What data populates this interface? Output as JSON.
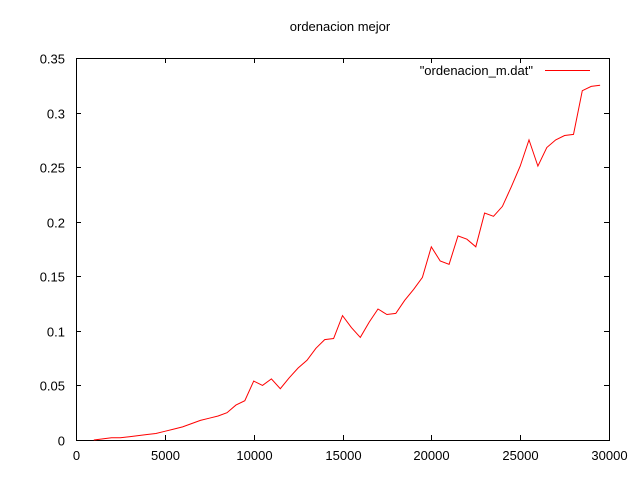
{
  "chart_data": {
    "type": "line",
    "title": "ordenacion mejor",
    "xlabel": "",
    "ylabel": "",
    "xlim": [
      0,
      30000
    ],
    "ylim": [
      0,
      0.35
    ],
    "x_ticks": [
      0,
      5000,
      10000,
      15000,
      20000,
      25000,
      30000
    ],
    "x_tick_labels": [
      "0",
      "5000",
      "10000",
      "15000",
      "20000",
      "25000",
      "30000"
    ],
    "y_ticks": [
      0,
      0.05,
      0.1,
      0.15,
      0.2,
      0.25,
      0.3,
      0.35
    ],
    "y_tick_labels": [
      "0",
      "0.05",
      "0.1",
      "0.15",
      "0.2",
      "0.25",
      "0.3",
      "0.35"
    ],
    "grid": false,
    "legend_position": "top-right",
    "series": [
      {
        "name": "\"ordenacion_m.dat\"",
        "color": "#ff0000",
        "x": [
          1000,
          1500,
          2000,
          2500,
          3000,
          3500,
          4000,
          4500,
          5000,
          5500,
          6000,
          6500,
          7000,
          7500,
          8000,
          8500,
          9000,
          9500,
          10000,
          10500,
          11000,
          11500,
          12000,
          12500,
          13000,
          13500,
          14000,
          14500,
          15000,
          15500,
          16000,
          16500,
          17000,
          17500,
          18000,
          18500,
          19000,
          19500,
          20000,
          20500,
          21000,
          21500,
          22000,
          22500,
          23000,
          23500,
          24000,
          24500,
          25000,
          25500,
          26000,
          26500,
          27000,
          27500,
          28000,
          28500,
          29000,
          29500
        ],
        "y": [
          0.0,
          0.001,
          0.002,
          0.002,
          0.003,
          0.004,
          0.005,
          0.006,
          0.008,
          0.01,
          0.012,
          0.015,
          0.018,
          0.02,
          0.022,
          0.025,
          0.032,
          0.036,
          0.054,
          0.05,
          0.056,
          0.047,
          0.057,
          0.066,
          0.073,
          0.084,
          0.092,
          0.093,
          0.114,
          0.103,
          0.094,
          0.108,
          0.12,
          0.115,
          0.116,
          0.128,
          0.138,
          0.149,
          0.177,
          0.164,
          0.161,
          0.187,
          0.184,
          0.177,
          0.208,
          0.205,
          0.214,
          0.232,
          0.251,
          0.275,
          0.251,
          0.268,
          0.275,
          0.279,
          0.28,
          0.32,
          0.324,
          0.325
        ]
      }
    ]
  }
}
